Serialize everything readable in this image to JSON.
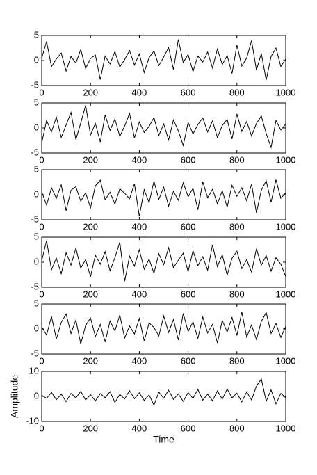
{
  "chart_data": [
    {
      "type": "line",
      "color": "#000000",
      "xlim": [
        0,
        1000
      ],
      "ylim": [
        -5,
        5
      ],
      "xticks": [
        0,
        200,
        400,
        600,
        800,
        1000
      ],
      "yticks": [
        -5,
        0,
        5
      ],
      "x": [
        0,
        20,
        40,
        60,
        80,
        100,
        120,
        140,
        160,
        180,
        200,
        220,
        240,
        260,
        280,
        300,
        320,
        340,
        360,
        380,
        400,
        420,
        440,
        460,
        480,
        500,
        520,
        540,
        560,
        580,
        600,
        620,
        640,
        660,
        680,
        700,
        720,
        740,
        760,
        780,
        800,
        820,
        840,
        860,
        880,
        900,
        920,
        940,
        960,
        980,
        1000
      ],
      "values": [
        0.5,
        3.8,
        -1.2,
        0.3,
        1.5,
        -2.1,
        0.8,
        -0.5,
        2.2,
        -1.6,
        0.4,
        1.1,
        -3.8,
        0.9,
        -0.7,
        1.8,
        -1.3,
        0.2,
        2.0,
        -0.9,
        1.3,
        -2.4,
        0.6,
        1.9,
        -1.0,
        0.7,
        2.6,
        -1.8,
        4.2,
        -0.4,
        1.2,
        -2.2,
        0.9,
        -0.3,
        1.7,
        -1.5,
        2.3,
        -0.8,
        1.0,
        -2.6,
        3.1,
        -1.1,
        0.5,
        4.0,
        -1.9,
        1.4,
        -3.9,
        0.8,
        2.5,
        -1.2,
        0.3
      ]
    },
    {
      "type": "line",
      "color": "#000000",
      "xlim": [
        0,
        1000
      ],
      "ylim": [
        -5,
        5
      ],
      "xticks": [
        0,
        200,
        400,
        600,
        800,
        1000
      ],
      "yticks": [
        -5,
        0,
        5
      ],
      "x": [
        0,
        20,
        40,
        60,
        80,
        100,
        120,
        140,
        160,
        180,
        200,
        220,
        240,
        260,
        280,
        300,
        320,
        340,
        360,
        380,
        400,
        420,
        440,
        460,
        480,
        500,
        520,
        540,
        560,
        580,
        600,
        620,
        640,
        660,
        680,
        700,
        720,
        740,
        760,
        780,
        800,
        820,
        840,
        860,
        880,
        900,
        920,
        940,
        960,
        980,
        1000
      ],
      "values": [
        -3.0,
        1.5,
        -0.8,
        2.2,
        -1.9,
        0.6,
        3.1,
        -2.3,
        1.0,
        4.5,
        -1.4,
        0.9,
        -2.8,
        2.6,
        -0.5,
        1.8,
        -1.7,
        0.4,
        2.9,
        -2.0,
        1.2,
        -0.9,
        0.3,
        2.1,
        -1.5,
        0.8,
        -2.4,
        1.6,
        -0.6,
        -3.5,
        1.1,
        -1.2,
        0.7,
        2.0,
        -0.8,
        1.4,
        -1.9,
        0.5,
        1.7,
        -2.2,
        2.8,
        -0.7,
        1.3,
        -1.6,
        0.9,
        2.4,
        -1.1,
        -3.9,
        1.5,
        -0.4,
        0.8
      ]
    },
    {
      "type": "line",
      "color": "#000000",
      "xlim": [
        0,
        1000
      ],
      "ylim": [
        -5,
        5
      ],
      "xticks": [
        0,
        200,
        400,
        600,
        800,
        1000
      ],
      "yticks": [
        -5,
        0,
        5
      ],
      "x": [
        0,
        20,
        40,
        60,
        80,
        100,
        120,
        140,
        160,
        180,
        200,
        220,
        240,
        260,
        280,
        300,
        320,
        340,
        360,
        380,
        400,
        420,
        440,
        460,
        480,
        500,
        520,
        540,
        560,
        580,
        600,
        620,
        640,
        660,
        680,
        700,
        720,
        740,
        760,
        780,
        800,
        820,
        840,
        860,
        880,
        900,
        920,
        940,
        960,
        980,
        1000
      ],
      "values": [
        0.6,
        -2.1,
        1.4,
        -0.7,
        2.0,
        -3.2,
        0.9,
        1.6,
        -1.3,
        0.4,
        -2.6,
        1.8,
        2.9,
        -1.0,
        0.5,
        -1.9,
        1.2,
        0.3,
        -0.8,
        2.2,
        -4.3,
        1.0,
        -1.6,
        2.7,
        -0.9,
        1.5,
        -2.3,
        0.7,
        -1.1,
        2.4,
        -0.4,
        1.3,
        -3.0,
        2.6,
        -0.6,
        1.1,
        -1.8,
        0.8,
        -2.5,
        1.9,
        -0.3,
        1.4,
        -1.2,
        2.1,
        -3.6,
        0.9,
        2.8,
        -1.5,
        3.0,
        -0.7,
        0.4
      ]
    },
    {
      "type": "line",
      "color": "#000000",
      "xlim": [
        0,
        1000
      ],
      "ylim": [
        -5,
        5
      ],
      "xticks": [
        0,
        200,
        400,
        600,
        800,
        1000
      ],
      "yticks": [
        -5,
        0,
        5
      ],
      "x": [
        0,
        20,
        40,
        60,
        80,
        100,
        120,
        140,
        160,
        180,
        200,
        220,
        240,
        260,
        280,
        300,
        320,
        340,
        360,
        380,
        400,
        420,
        440,
        460,
        480,
        500,
        520,
        540,
        560,
        580,
        600,
        620,
        640,
        660,
        680,
        700,
        720,
        740,
        760,
        780,
        800,
        820,
        840,
        860,
        880,
        900,
        920,
        940,
        960,
        980,
        1000
      ],
      "values": [
        0.3,
        4.3,
        -1.5,
        0.8,
        -2.3,
        1.9,
        -0.6,
        2.8,
        -1.2,
        0.5,
        -2.9,
        1.4,
        -0.4,
        2.1,
        -1.7,
        0.9,
        4.0,
        -3.8,
        1.2,
        -0.8,
        2.5,
        -1.4,
        0.6,
        -2.2,
        1.7,
        -0.5,
        2.9,
        -1.1,
        0.4,
        1.8,
        -1.9,
        2.3,
        -0.7,
        1.1,
        -1.6,
        3.5,
        -0.9,
        1.5,
        -2.6,
        0.8,
        2.2,
        -1.3,
        0.5,
        -2.0,
        2.7,
        -0.6,
        1.3,
        -1.8,
        0.9,
        -0.4,
        -2.9
      ]
    },
    {
      "type": "line",
      "color": "#000000",
      "xlim": [
        0,
        1000
      ],
      "ylim": [
        -5,
        5
      ],
      "xticks": [
        0,
        200,
        400,
        600,
        800,
        1000
      ],
      "yticks": [
        -5,
        0,
        5
      ],
      "x": [
        0,
        20,
        40,
        60,
        80,
        100,
        120,
        140,
        160,
        180,
        200,
        220,
        240,
        260,
        280,
        300,
        320,
        340,
        360,
        380,
        400,
        420,
        440,
        460,
        480,
        500,
        520,
        540,
        560,
        580,
        600,
        620,
        640,
        660,
        680,
        700,
        720,
        740,
        760,
        780,
        800,
        820,
        840,
        860,
        880,
        900,
        920,
        940,
        960,
        980,
        1000
      ],
      "values": [
        0.4,
        -1.2,
        2.5,
        -2.0,
        1.3,
        3.0,
        -0.9,
        1.8,
        -3.0,
        0.7,
        2.2,
        -1.5,
        0.9,
        -2.6,
        1.6,
        -0.4,
        2.8,
        -1.8,
        0.6,
        -1.0,
        2.1,
        -2.4,
        1.2,
        0.3,
        -1.4,
        2.6,
        -0.7,
        1.9,
        -2.2,
        3.1,
        -0.5,
        1.4,
        -1.9,
        2.4,
        -0.8,
        0.9,
        -2.8,
        1.7,
        -0.6,
        2.3,
        -1.3,
        3.4,
        -1.6,
        0.8,
        -2.1,
        1.5,
        3.3,
        -0.9,
        1.1,
        -1.7,
        0.5
      ]
    },
    {
      "type": "line",
      "color": "#000000",
      "xlim": [
        0,
        1000
      ],
      "ylim": [
        -10,
        10
      ],
      "xticks": [
        0,
        200,
        400,
        600,
        800,
        1000
      ],
      "yticks": [
        -10,
        0,
        10
      ],
      "xlabel": "Time",
      "ylabel": "Amplitude",
      "x": [
        0,
        20,
        40,
        60,
        80,
        100,
        120,
        140,
        160,
        180,
        200,
        220,
        240,
        260,
        280,
        300,
        320,
        340,
        360,
        380,
        400,
        420,
        440,
        460,
        480,
        500,
        520,
        540,
        560,
        580,
        600,
        620,
        640,
        660,
        680,
        700,
        720,
        740,
        760,
        780,
        800,
        820,
        840,
        860,
        880,
        900,
        920,
        940,
        960,
        980,
        1000
      ],
      "values": [
        0.5,
        -0.8,
        1.6,
        -1.3,
        0.9,
        -2.1,
        1.2,
        -0.6,
        2.0,
        -1.4,
        0.7,
        -1.8,
        1.1,
        -0.5,
        1.9,
        -2.4,
        0.8,
        -1.0,
        2.3,
        -0.9,
        1.4,
        -1.6,
        0.6,
        -3.5,
        1.7,
        -0.7,
        2.5,
        -1.2,
        1.0,
        -2.0,
        1.5,
        -0.8,
        2.8,
        -1.5,
        0.9,
        -1.7,
        2.2,
        -1.1,
        3.0,
        -0.6,
        1.3,
        -2.2,
        1.8,
        -1.4,
        4.1,
        7.0,
        -1.9,
        2.6,
        -3.0,
        1.2,
        -0.5
      ]
    }
  ]
}
